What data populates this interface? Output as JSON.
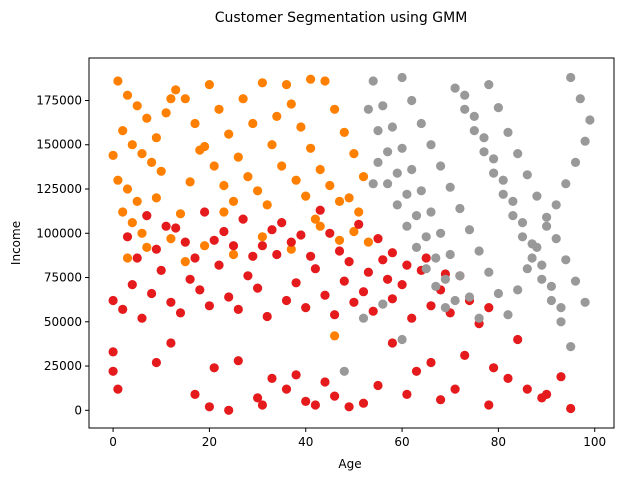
{
  "chart_data": {
    "type": "scatter",
    "title": "Customer Segmentation using GMM",
    "xlabel": "Age",
    "ylabel": "Income",
    "xlim": [
      -5,
      104
    ],
    "ylim": [
      -10000,
      199000
    ],
    "xticks": [
      0,
      20,
      40,
      60,
      80,
      100
    ],
    "yticks": [
      0,
      25000,
      50000,
      75000,
      100000,
      125000,
      150000,
      175000
    ],
    "grid": false,
    "legend": "none",
    "colors": [
      "#ff7f00",
      "#e41a1c",
      "#999999"
    ],
    "series": [
      {
        "color": "#ff7f00",
        "points": [
          [
            1,
            186000
          ],
          [
            3,
            178000
          ],
          [
            5,
            172000
          ],
          [
            7,
            165000
          ],
          [
            2,
            158000
          ],
          [
            4,
            150000
          ],
          [
            6,
            145000
          ],
          [
            8,
            140000
          ],
          [
            10,
            135000
          ],
          [
            1,
            130000
          ],
          [
            3,
            125000
          ],
          [
            5,
            118000
          ],
          [
            2,
            112000
          ],
          [
            4,
            106000
          ],
          [
            6,
            100000
          ],
          [
            0,
            144000
          ],
          [
            9,
            154000
          ],
          [
            11,
            168000
          ],
          [
            13,
            181000
          ],
          [
            15,
            176000
          ],
          [
            17,
            162000
          ],
          [
            19,
            149000
          ],
          [
            21,
            138000
          ],
          [
            23,
            127000
          ],
          [
            25,
            118000
          ],
          [
            14,
            111000
          ],
          [
            16,
            129000
          ],
          [
            18,
            147000
          ],
          [
            20,
            184000
          ],
          [
            22,
            170000
          ],
          [
            24,
            156000
          ],
          [
            26,
            143000
          ],
          [
            28,
            132000
          ],
          [
            30,
            124000
          ],
          [
            32,
            116000
          ],
          [
            27,
            176000
          ],
          [
            29,
            162000
          ],
          [
            31,
            185000
          ],
          [
            33,
            150000
          ],
          [
            35,
            138000
          ],
          [
            37,
            173000
          ],
          [
            39,
            160000
          ],
          [
            41,
            148000
          ],
          [
            43,
            136000
          ],
          [
            45,
            127000
          ],
          [
            47,
            118000
          ],
          [
            36,
            184000
          ],
          [
            38,
            130000
          ],
          [
            40,
            121000
          ],
          [
            42,
            108000
          ],
          [
            44,
            186000
          ],
          [
            46,
            170000
          ],
          [
            48,
            157000
          ],
          [
            50,
            145000
          ],
          [
            52,
            132000
          ],
          [
            49,
            120000
          ],
          [
            51,
            112000
          ],
          [
            12,
            97000
          ],
          [
            7,
            92000
          ],
          [
            3,
            86000
          ],
          [
            15,
            84000
          ],
          [
            19,
            93000
          ],
          [
            25,
            88000
          ],
          [
            31,
            98000
          ],
          [
            37,
            91000
          ],
          [
            43,
            104000
          ],
          [
            47,
            96000
          ],
          [
            50,
            101000
          ],
          [
            12,
            176000
          ],
          [
            9,
            120000
          ],
          [
            34,
            166000
          ],
          [
            41,
            187000
          ],
          [
            23,
            112000
          ],
          [
            46,
            42000
          ],
          [
            53,
            95000
          ]
        ]
      },
      {
        "color": "#e41a1c",
        "points": [
          [
            0,
            33000
          ],
          [
            0,
            22000
          ],
          [
            1,
            12000
          ],
          [
            9,
            27000
          ],
          [
            12,
            38000
          ],
          [
            17,
            9000
          ],
          [
            20,
            2000
          ],
          [
            21,
            24000
          ],
          [
            24,
            0
          ],
          [
            26,
            28000
          ],
          [
            30,
            7000
          ],
          [
            31,
            3000
          ],
          [
            33,
            18000
          ],
          [
            36,
            12000
          ],
          [
            38,
            20000
          ],
          [
            40,
            5000
          ],
          [
            42,
            3000
          ],
          [
            44,
            16000
          ],
          [
            46,
            8000
          ],
          [
            49,
            2000
          ],
          [
            52,
            4000
          ],
          [
            55,
            14000
          ],
          [
            58,
            38000
          ],
          [
            61,
            9000
          ],
          [
            63,
            22000
          ],
          [
            66,
            27000
          ],
          [
            68,
            6000
          ],
          [
            71,
            12000
          ],
          [
            73,
            31000
          ],
          [
            78,
            3000
          ],
          [
            79,
            24000
          ],
          [
            82,
            18000
          ],
          [
            84,
            40000
          ],
          [
            86,
            12000
          ],
          [
            89,
            7000
          ],
          [
            90,
            9000
          ],
          [
            93,
            19000
          ],
          [
            95,
            1000
          ],
          [
            0,
            62000
          ],
          [
            2,
            57000
          ],
          [
            4,
            71000
          ],
          [
            6,
            52000
          ],
          [
            8,
            66000
          ],
          [
            10,
            79000
          ],
          [
            12,
            61000
          ],
          [
            14,
            55000
          ],
          [
            16,
            74000
          ],
          [
            18,
            68000
          ],
          [
            20,
            59000
          ],
          [
            22,
            82000
          ],
          [
            24,
            64000
          ],
          [
            26,
            57000
          ],
          [
            28,
            76000
          ],
          [
            30,
            69000
          ],
          [
            32,
            53000
          ],
          [
            34,
            88000
          ],
          [
            36,
            62000
          ],
          [
            38,
            72000
          ],
          [
            40,
            58000
          ],
          [
            42,
            80000
          ],
          [
            44,
            65000
          ],
          [
            46,
            54000
          ],
          [
            48,
            73000
          ],
          [
            50,
            61000
          ],
          [
            52,
            67000
          ],
          [
            54,
            56000
          ],
          [
            56,
            85000
          ],
          [
            58,
            63000
          ],
          [
            60,
            71000
          ],
          [
            62,
            52000
          ],
          [
            64,
            79000
          ],
          [
            66,
            59000
          ],
          [
            68,
            68000
          ],
          [
            70,
            55000
          ],
          [
            72,
            76000
          ],
          [
            74,
            62000
          ],
          [
            76,
            49000
          ],
          [
            78,
            58000
          ],
          [
            3,
            98000
          ],
          [
            7,
            110000
          ],
          [
            11,
            104000
          ],
          [
            15,
            95000
          ],
          [
            19,
            112000
          ],
          [
            23,
            101000
          ],
          [
            27,
            108000
          ],
          [
            31,
            93000
          ],
          [
            35,
            106000
          ],
          [
            39,
            99000
          ],
          [
            43,
            113000
          ],
          [
            47,
            90000
          ],
          [
            51,
            105000
          ],
          [
            55,
            97000
          ],
          [
            58,
            89000
          ],
          [
            61,
            82000
          ],
          [
            5,
            86000
          ],
          [
            9,
            91000
          ],
          [
            13,
            103000
          ],
          [
            17,
            86000
          ],
          [
            21,
            96000
          ],
          [
            25,
            93000
          ],
          [
            29,
            87000
          ],
          [
            33,
            102000
          ],
          [
            37,
            95000
          ],
          [
            41,
            87000
          ],
          [
            45,
            100000
          ],
          [
            49,
            84000
          ],
          [
            53,
            78000
          ],
          [
            57,
            74000
          ],
          [
            65,
            86000
          ],
          [
            69,
            77000
          ]
        ]
      },
      {
        "color": "#999999",
        "points": [
          [
            54,
            186000
          ],
          [
            56,
            172000
          ],
          [
            58,
            160000
          ],
          [
            60,
            148000
          ],
          [
            62,
            136000
          ],
          [
            64,
            124000
          ],
          [
            66,
            112000
          ],
          [
            68,
            100000
          ],
          [
            70,
            88000
          ],
          [
            72,
            76000
          ],
          [
            74,
            64000
          ],
          [
            76,
            52000
          ],
          [
            55,
            140000
          ],
          [
            57,
            128000
          ],
          [
            59,
            116000
          ],
          [
            61,
            104000
          ],
          [
            63,
            92000
          ],
          [
            65,
            80000
          ],
          [
            67,
            70000
          ],
          [
            69,
            58000
          ],
          [
            71,
            182000
          ],
          [
            73,
            170000
          ],
          [
            75,
            158000
          ],
          [
            77,
            146000
          ],
          [
            79,
            134000
          ],
          [
            81,
            122000
          ],
          [
            83,
            110000
          ],
          [
            85,
            98000
          ],
          [
            87,
            86000
          ],
          [
            89,
            74000
          ],
          [
            91,
            62000
          ],
          [
            93,
            50000
          ],
          [
            95,
            188000
          ],
          [
            97,
            176000
          ],
          [
            99,
            164000
          ],
          [
            78,
            184000
          ],
          [
            80,
            171000
          ],
          [
            82,
            157000
          ],
          [
            84,
            145000
          ],
          [
            86,
            133000
          ],
          [
            88,
            121000
          ],
          [
            90,
            109000
          ],
          [
            92,
            97000
          ],
          [
            94,
            85000
          ],
          [
            96,
            73000
          ],
          [
            98,
            61000
          ],
          [
            60,
            188000
          ],
          [
            62,
            175000
          ],
          [
            64,
            162000
          ],
          [
            66,
            150000
          ],
          [
            68,
            138000
          ],
          [
            70,
            126000
          ],
          [
            72,
            114000
          ],
          [
            74,
            102000
          ],
          [
            76,
            90000
          ],
          [
            78,
            78000
          ],
          [
            80,
            66000
          ],
          [
            82,
            54000
          ],
          [
            84,
            68000
          ],
          [
            86,
            80000
          ],
          [
            88,
            92000
          ],
          [
            90,
            104000
          ],
          [
            92,
            116000
          ],
          [
            94,
            128000
          ],
          [
            96,
            140000
          ],
          [
            98,
            152000
          ],
          [
            53,
            170000
          ],
          [
            55,
            158000
          ],
          [
            57,
            146000
          ],
          [
            59,
            134000
          ],
          [
            61,
            122000
          ],
          [
            63,
            110000
          ],
          [
            65,
            98000
          ],
          [
            67,
            86000
          ],
          [
            69,
            74000
          ],
          [
            71,
            62000
          ],
          [
            73,
            178000
          ],
          [
            75,
            166000
          ],
          [
            77,
            154000
          ],
          [
            79,
            142000
          ],
          [
            81,
            130000
          ],
          [
            83,
            118000
          ],
          [
            85,
            106000
          ],
          [
            87,
            94000
          ],
          [
            89,
            82000
          ],
          [
            91,
            70000
          ],
          [
            93,
            58000
          ],
          [
            95,
            36000
          ],
          [
            56,
            60000
          ],
          [
            52,
            52000
          ],
          [
            60,
            40000
          ],
          [
            48,
            22000
          ],
          [
            54,
            128000
          ]
        ]
      }
    ]
  }
}
